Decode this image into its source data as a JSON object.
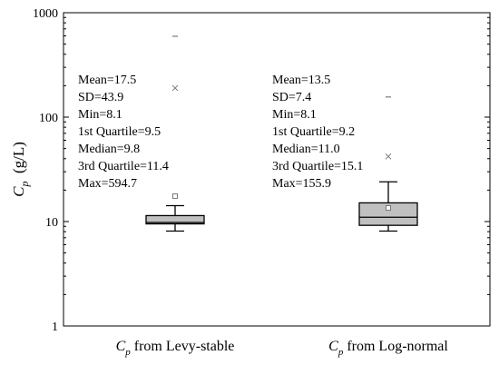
{
  "chart_data": {
    "type": "box",
    "title": "",
    "ylabel_main": "C",
    "ylabel_sub": "p",
    "ylabel_unit": "(g/L)",
    "yscale": "log",
    "ylim": [
      1,
      1000
    ],
    "yticks": [
      1,
      10,
      100,
      1000
    ],
    "ytick_labels": [
      "1",
      "10",
      "100",
      "1000"
    ],
    "grid": false,
    "box_fill": "#c0c0c0",
    "line_color": "#000000",
    "outlier_color": "#777777",
    "groups": [
      {
        "xlabel_main": "C",
        "xlabel_sub": "p",
        "xlabel_rest": " from Levy-stable",
        "whisker_low": 8.1,
        "q1": 9.5,
        "median": 9.8,
        "q3": 11.4,
        "whisker_high": 14.2,
        "mean_marker": 17.5,
        "pct_99": 190,
        "max": 594.7,
        "stats": [
          "Mean=17.5",
          "SD=43.9",
          "Min=8.1",
          "1st Quartile=9.5",
          "Median=9.8",
          "3rd Quartile=11.4",
          "Max=594.7"
        ]
      },
      {
        "xlabel_main": "C",
        "xlabel_sub": "p",
        "xlabel_rest": " from Log-normal",
        "whisker_low": 8.1,
        "q1": 9.2,
        "median": 11.0,
        "q3": 15.1,
        "whisker_high": 24.0,
        "mean_marker": 13.5,
        "pct_99": 42,
        "max": 155.9,
        "stats": [
          "Mean=13.5",
          "SD=7.4",
          "Min=8.1",
          "1st Quartile=9.2",
          "Median=11.0",
          "3rd Quartile=15.1",
          "Max=155.9"
        ]
      }
    ]
  }
}
